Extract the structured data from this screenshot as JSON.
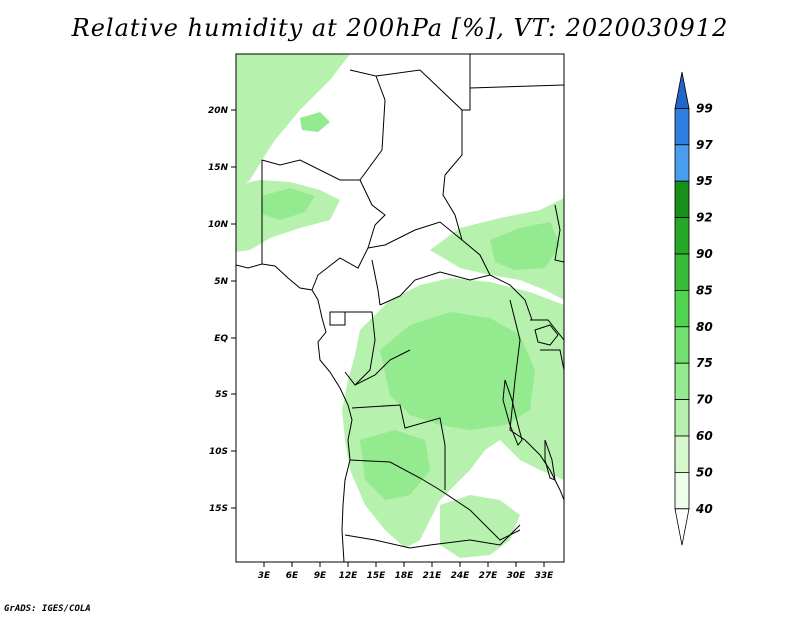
{
  "title": "Relative humidity at 200hPa [%], VT: 2020030912",
  "footer": "GrADS: IGES/COLA",
  "map": {
    "lon_labels": [
      "3E",
      "6E",
      "9E",
      "12E",
      "15E",
      "18E",
      "21E",
      "24E",
      "27E",
      "30E",
      "33E"
    ],
    "lat_labels": [
      "20N",
      "15N",
      "10N",
      "5N",
      "EQ",
      "5S",
      "10S",
      "15S"
    ]
  },
  "colorbar": {
    "levels": [
      "99",
      "97",
      "95",
      "92",
      "90",
      "85",
      "80",
      "75",
      "70",
      "60",
      "50",
      "40"
    ],
    "colors": [
      "#2166c8",
      "#2f7ee0",
      "#4a9ef0",
      "#16901a",
      "#25a828",
      "#38bc38",
      "#4fd44f",
      "#72e070",
      "#94ea8e",
      "#b6f1ae",
      "#d4f8cc",
      "#eefdea",
      "#ffffff"
    ]
  }
}
